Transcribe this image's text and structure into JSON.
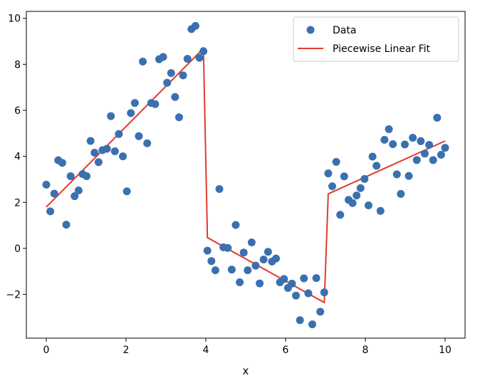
{
  "chart_data": {
    "type": "scatter",
    "title": "",
    "xlabel": "x",
    "ylabel": "",
    "xlim": [
      -0.5,
      10.5
    ],
    "ylim": [
      -3.9,
      10.3
    ],
    "xticks": [
      0,
      2,
      4,
      6,
      8,
      10
    ],
    "yticks": [
      -2,
      0,
      2,
      4,
      6,
      8,
      10
    ],
    "xtick_labels": [
      "0",
      "2",
      "4",
      "6",
      "8",
      "10"
    ],
    "ytick_labels": [
      "−2",
      "0",
      "2",
      "4",
      "6",
      "8",
      "10"
    ],
    "grid": false,
    "legend_position": "top-right",
    "series": [
      {
        "name": "Data",
        "kind": "scatter",
        "color": "#3a70b0",
        "points": [
          [
            0.0,
            2.77
          ],
          [
            0.1,
            1.61
          ],
          [
            0.2,
            2.38
          ],
          [
            0.3,
            3.83
          ],
          [
            0.4,
            3.72
          ],
          [
            0.5,
            1.03
          ],
          [
            0.61,
            3.14
          ],
          [
            0.71,
            2.27
          ],
          [
            0.81,
            2.52
          ],
          [
            0.91,
            3.23
          ],
          [
            1.01,
            3.14
          ],
          [
            1.11,
            4.67
          ],
          [
            1.21,
            4.16
          ],
          [
            1.31,
            3.75
          ],
          [
            1.41,
            4.27
          ],
          [
            1.52,
            4.33
          ],
          [
            1.62,
            5.75
          ],
          [
            1.72,
            4.22
          ],
          [
            1.82,
            4.97
          ],
          [
            1.92,
            4.0
          ],
          [
            2.02,
            2.48
          ],
          [
            2.12,
            5.88
          ],
          [
            2.22,
            6.32
          ],
          [
            2.32,
            4.88
          ],
          [
            2.42,
            8.12
          ],
          [
            2.53,
            4.57
          ],
          [
            2.63,
            6.32
          ],
          [
            2.73,
            6.27
          ],
          [
            2.83,
            8.22
          ],
          [
            2.93,
            8.32
          ],
          [
            3.03,
            7.2
          ],
          [
            3.13,
            7.62
          ],
          [
            3.23,
            6.58
          ],
          [
            3.33,
            5.7
          ],
          [
            3.43,
            7.52
          ],
          [
            3.54,
            8.24
          ],
          [
            3.64,
            9.53
          ],
          [
            3.74,
            9.67
          ],
          [
            3.84,
            8.28
          ],
          [
            3.94,
            8.57
          ],
          [
            4.04,
            -0.1
          ],
          [
            4.14,
            -0.55
          ],
          [
            4.24,
            -0.95
          ],
          [
            4.34,
            2.58
          ],
          [
            4.44,
            0.05
          ],
          [
            4.55,
            0.02
          ],
          [
            4.65,
            -0.92
          ],
          [
            4.75,
            1.02
          ],
          [
            4.85,
            -1.47
          ],
          [
            4.95,
            -0.18
          ],
          [
            5.05,
            -0.95
          ],
          [
            5.15,
            0.26
          ],
          [
            5.25,
            -0.75
          ],
          [
            5.35,
            -1.52
          ],
          [
            5.45,
            -0.48
          ],
          [
            5.56,
            -0.15
          ],
          [
            5.66,
            -0.57
          ],
          [
            5.76,
            -0.44
          ],
          [
            5.86,
            -1.47
          ],
          [
            5.96,
            -1.33
          ],
          [
            6.06,
            -1.72
          ],
          [
            6.16,
            -1.53
          ],
          [
            6.26,
            -2.05
          ],
          [
            6.36,
            -3.12
          ],
          [
            6.46,
            -1.3
          ],
          [
            6.57,
            -1.95
          ],
          [
            6.67,
            -3.3
          ],
          [
            6.77,
            -1.29
          ],
          [
            6.87,
            -2.75
          ],
          [
            6.97,
            -1.91
          ],
          [
            7.07,
            3.26
          ],
          [
            7.17,
            2.7
          ],
          [
            7.27,
            3.76
          ],
          [
            7.37,
            1.46
          ],
          [
            7.47,
            3.13
          ],
          [
            7.58,
            2.11
          ],
          [
            7.68,
            1.97
          ],
          [
            7.78,
            2.3
          ],
          [
            7.88,
            2.62
          ],
          [
            7.98,
            3.02
          ],
          [
            8.08,
            1.87
          ],
          [
            8.18,
            3.99
          ],
          [
            8.28,
            3.59
          ],
          [
            8.38,
            1.63
          ],
          [
            8.48,
            4.72
          ],
          [
            8.59,
            5.18
          ],
          [
            8.69,
            4.53
          ],
          [
            8.79,
            3.22
          ],
          [
            8.89,
            2.37
          ],
          [
            8.99,
            4.52
          ],
          [
            9.09,
            3.15
          ],
          [
            9.19,
            4.81
          ],
          [
            9.29,
            3.84
          ],
          [
            9.39,
            4.66
          ],
          [
            9.49,
            4.12
          ],
          [
            9.6,
            4.5
          ],
          [
            9.7,
            3.84
          ],
          [
            9.8,
            5.68
          ],
          [
            9.9,
            4.07
          ],
          [
            10.0,
            4.37
          ]
        ]
      },
      {
        "name": "Piecewise Linear Fit",
        "kind": "line",
        "color": "#e03b2e",
        "points": [
          [
            0.0,
            1.8
          ],
          [
            3.94,
            8.69
          ],
          [
            4.04,
            0.47
          ],
          [
            6.97,
            -2.35
          ],
          [
            7.07,
            2.37
          ],
          [
            10.0,
            4.67
          ]
        ]
      }
    ]
  }
}
